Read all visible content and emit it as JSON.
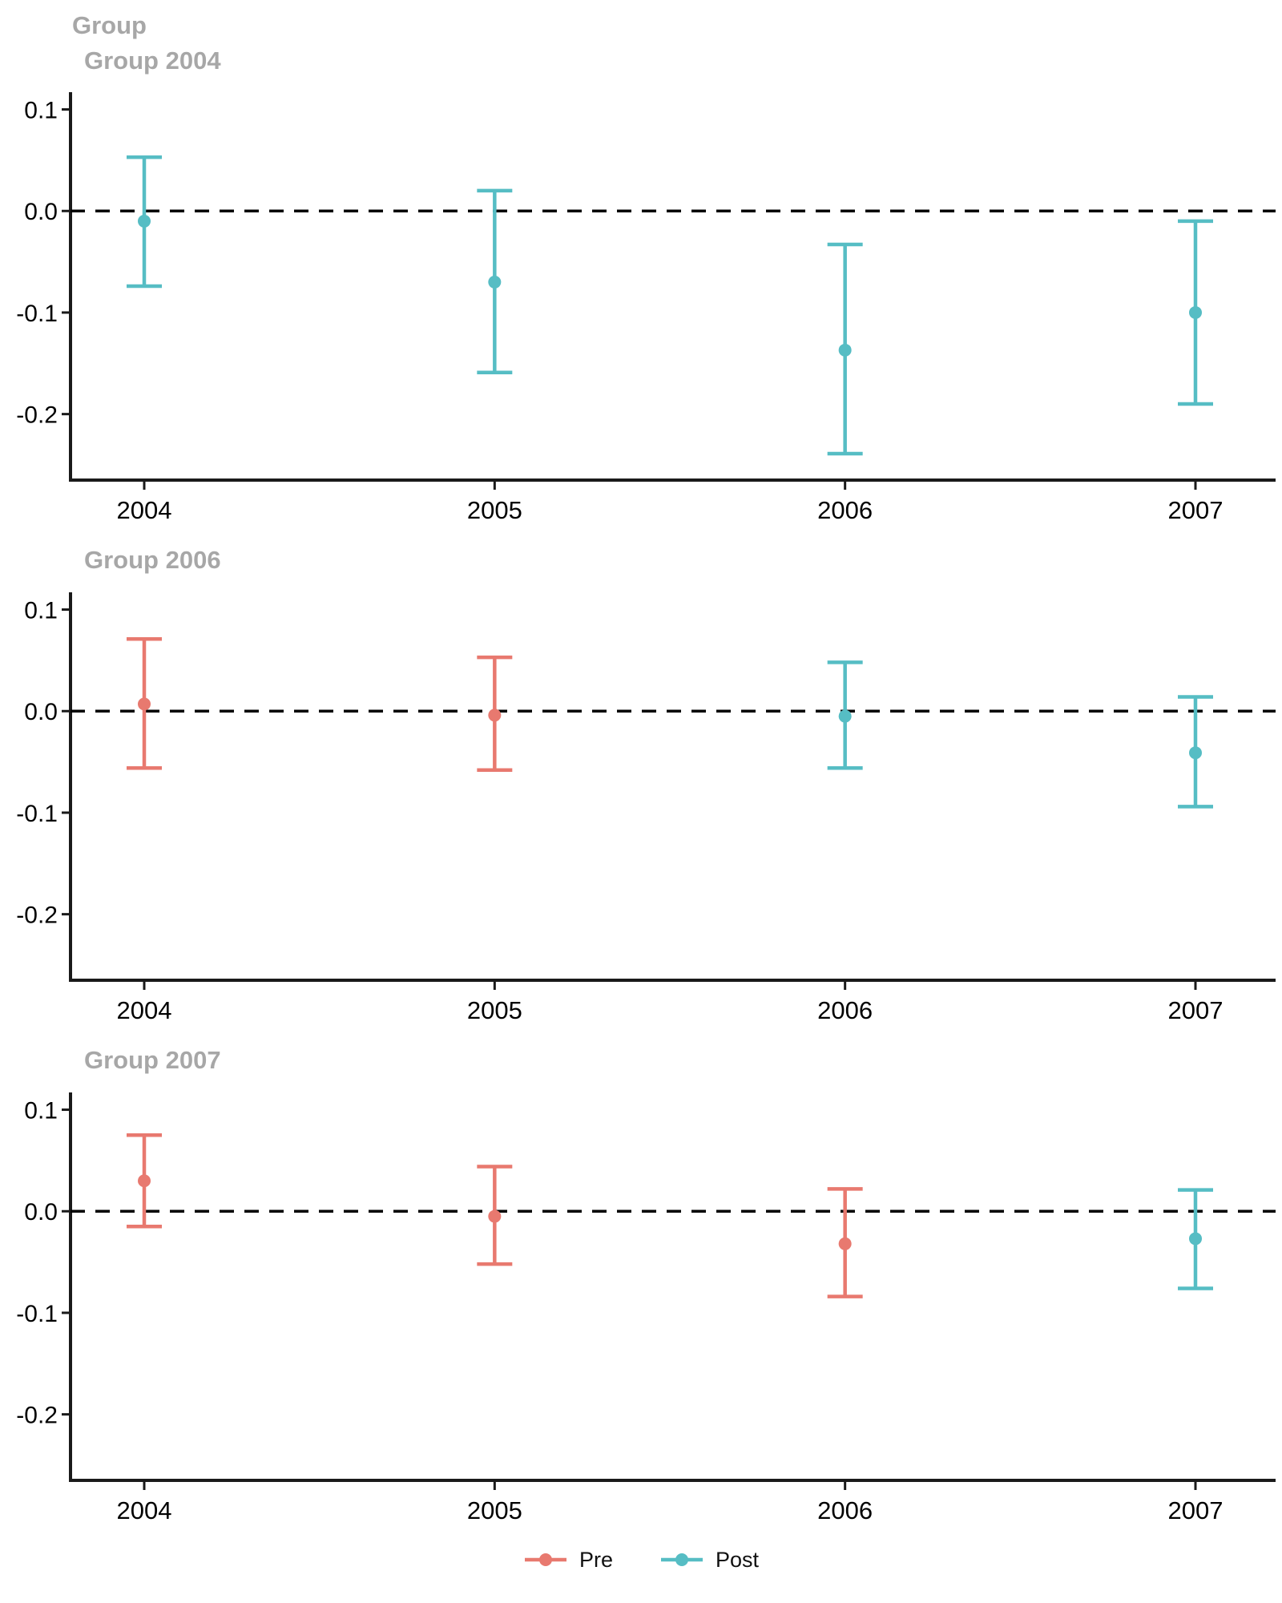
{
  "header": {
    "title": "Group"
  },
  "colors": {
    "pre": "#E8796F",
    "post": "#56BDC4",
    "title_gray": "#A7A7A7",
    "axis": "#1A1A1A",
    "zero_line": "#000000"
  },
  "legend": {
    "items": [
      {
        "label": "Pre",
        "color_key": "pre"
      },
      {
        "label": "Post",
        "color_key": "post"
      }
    ]
  },
  "chart_data": [
    {
      "type": "scatter",
      "title": "Group 2004",
      "xlabel": "",
      "ylabel": "",
      "x_tick_labels": [
        "2004",
        "2005",
        "2006",
        "2007"
      ],
      "y_tick_labels": [
        "0.1",
        "0.0",
        "-0.1",
        "-0.2"
      ],
      "y_tick_values": [
        0.1,
        0.0,
        -0.1,
        -0.2
      ],
      "ylim": [
        -0.265,
        0.117
      ],
      "zero_reference_line": true,
      "grid": false,
      "points": [
        {
          "x": 2004,
          "group": "Post",
          "estimate": -0.01,
          "ci_low": -0.074,
          "ci_high": 0.053
        },
        {
          "x": 2005,
          "group": "Post",
          "estimate": -0.07,
          "ci_low": -0.159,
          "ci_high": 0.02
        },
        {
          "x": 2006,
          "group": "Post",
          "estimate": -0.137,
          "ci_low": -0.239,
          "ci_high": -0.033
        },
        {
          "x": 2007,
          "group": "Post",
          "estimate": -0.1,
          "ci_low": -0.19,
          "ci_high": -0.01
        }
      ]
    },
    {
      "type": "scatter",
      "title": "Group 2006",
      "xlabel": "",
      "ylabel": "",
      "x_tick_labels": [
        "2004",
        "2005",
        "2006",
        "2007"
      ],
      "y_tick_labels": [
        "0.1",
        "0.0",
        "-0.1",
        "-0.2"
      ],
      "y_tick_values": [
        0.1,
        0.0,
        -0.1,
        -0.2
      ],
      "ylim": [
        -0.265,
        0.117
      ],
      "zero_reference_line": true,
      "grid": false,
      "points": [
        {
          "x": 2004,
          "group": "Pre",
          "estimate": 0.007,
          "ci_low": -0.056,
          "ci_high": 0.071
        },
        {
          "x": 2005,
          "group": "Pre",
          "estimate": -0.004,
          "ci_low": -0.058,
          "ci_high": 0.053
        },
        {
          "x": 2006,
          "group": "Post",
          "estimate": -0.005,
          "ci_low": -0.056,
          "ci_high": 0.048
        },
        {
          "x": 2007,
          "group": "Post",
          "estimate": -0.041,
          "ci_low": -0.094,
          "ci_high": 0.014
        }
      ]
    },
    {
      "type": "scatter",
      "title": "Group 2007",
      "xlabel": "",
      "ylabel": "",
      "x_tick_labels": [
        "2004",
        "2005",
        "2006",
        "2007"
      ],
      "y_tick_labels": [
        "0.1",
        "0.0",
        "-0.1",
        "-0.2"
      ],
      "y_tick_values": [
        0.1,
        0.0,
        -0.1,
        -0.2
      ],
      "ylim": [
        -0.265,
        0.117
      ],
      "zero_reference_line": true,
      "grid": false,
      "points": [
        {
          "x": 2004,
          "group": "Pre",
          "estimate": 0.03,
          "ci_low": -0.015,
          "ci_high": 0.075
        },
        {
          "x": 2005,
          "group": "Pre",
          "estimate": -0.005,
          "ci_low": -0.052,
          "ci_high": 0.044
        },
        {
          "x": 2006,
          "group": "Pre",
          "estimate": -0.032,
          "ci_low": -0.084,
          "ci_high": 0.022
        },
        {
          "x": 2007,
          "group": "Post",
          "estimate": -0.027,
          "ci_low": -0.076,
          "ci_high": 0.021
        }
      ]
    }
  ]
}
